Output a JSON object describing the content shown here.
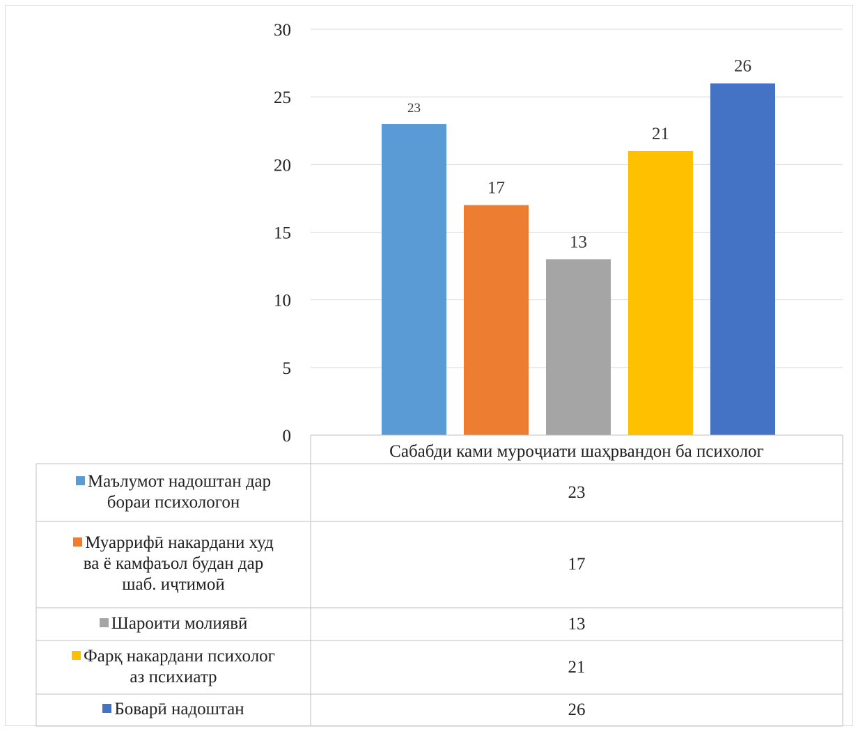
{
  "chart_data": {
    "type": "bar",
    "categories": [
      "Сабабди ками муроҷиати шаҳрвандон ба психолог"
    ],
    "ylim": [
      0,
      30
    ],
    "y_ticks": [
      0,
      5,
      10,
      15,
      20,
      25,
      30
    ],
    "grid": true,
    "legend_placement": "bottom-table",
    "series": [
      {
        "name": "Маълумот надоштан дар бораи психологон",
        "legend_lines": [
          "Маълумот надоштан дар",
          "бораи психологон"
        ],
        "value": 23,
        "label": "23",
        "color": "#5B9BD5"
      },
      {
        "name": "Муаррифӣ накардани худ ва ё камфаъол будан дар шаб. иҷтимоӣ",
        "legend_lines": [
          "Муаррифӣ накардани худ",
          "ва ё камфаъол будан дар",
          "шаб. иҷтимоӣ"
        ],
        "value": 17,
        "label": "17",
        "color": "#ED7D31"
      },
      {
        "name": "Шароити молиявӣ",
        "legend_lines": [
          "Шароити молиявӣ"
        ],
        "value": 13,
        "label": "13",
        "color": "#A5A5A5"
      },
      {
        "name": "Фарқ накардани психолог аз психиатр",
        "legend_lines": [
          "Фарқ накардани психолог",
          "аз психиатр"
        ],
        "value": 21,
        "label": "21",
        "color": "#FFC000"
      },
      {
        "name": "Боварӣ надоштан",
        "legend_lines": [
          "Боварӣ надоштан"
        ],
        "value": 26,
        "label": "26",
        "color": "#4472C4"
      }
    ]
  }
}
